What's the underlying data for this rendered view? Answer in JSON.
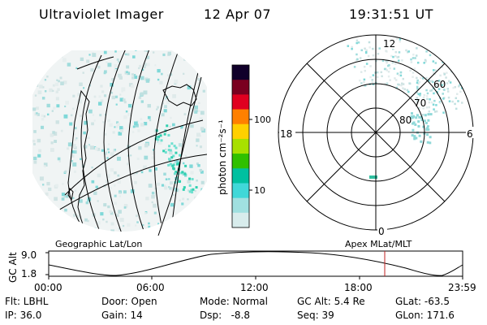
{
  "header": {
    "instrument": "Ultraviolet Imager",
    "date": "12 Apr 07",
    "time": "19:31:51 UT"
  },
  "map_left": {
    "label": "Geographic Lat/Lon"
  },
  "polar": {
    "label": "Apex MLat/MLT",
    "mlt_labels": {
      "top": "12",
      "left": "18",
      "right": "6",
      "bottom": "0"
    },
    "mlat_labels": [
      "60",
      "70",
      "80"
    ]
  },
  "colorbar": {
    "unit_label": "photon cm⁻²s⁻¹",
    "ticks": [
      "100",
      "10"
    ],
    "colors": [
      "#10002a",
      "#7a0020",
      "#e00020",
      "#ff8000",
      "#ffd000",
      "#a8e000",
      "#30c000",
      "#00c0a0",
      "#40d8d8",
      "#a0e0e0",
      "#d8ecec"
    ]
  },
  "altitude_plot": {
    "axis_title": "GC Alt",
    "y_ticks": [
      "9.0",
      "1.8"
    ],
    "x_ticks": [
      "00:00",
      "06:00",
      "12:00",
      "18:00",
      "23:59"
    ],
    "marker_time": "19:31"
  },
  "status": {
    "row1": {
      "flt": "Flt: LBHL",
      "door": "Door: Open",
      "mode": "Mode: Normal",
      "gcalt": "GC Alt: 5.4 Re",
      "glat": "GLat: -63.5"
    },
    "row2": {
      "ip": "IP: 36.0",
      "gain": "Gain: 14",
      "dsp": "Dsp:   -8.8",
      "seq": "Seq: 39",
      "glon": "GLon: 171.6"
    }
  }
}
